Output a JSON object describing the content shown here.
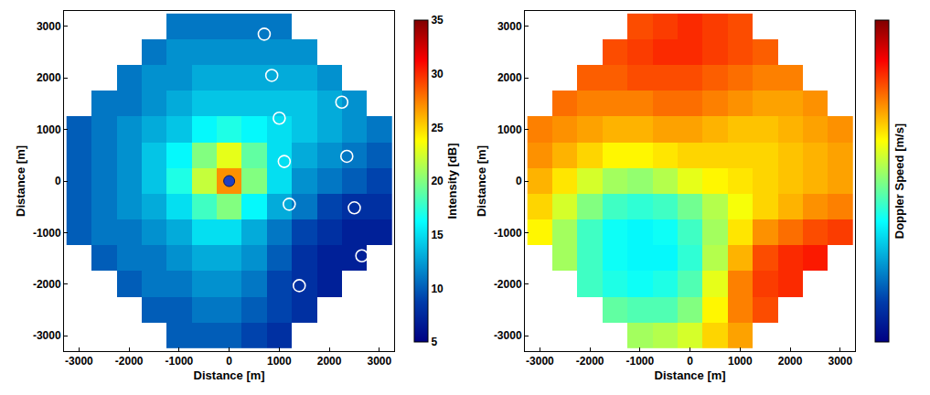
{
  "chart_data": [
    {
      "type": "heatmap",
      "xlabel": "Distance [m]",
      "ylabel": "Distance [m]",
      "xlim": [
        -3300,
        3300
      ],
      "ylim": [
        -3300,
        3300
      ],
      "xticks": [
        -3000,
        -2000,
        -1000,
        0,
        1000,
        2000,
        3000
      ],
      "yticks": [
        -3000,
        -2000,
        -1000,
        0,
        1000,
        2000,
        3000
      ],
      "colorbar_title": "Intensity [dB]",
      "zlim": [
        5,
        35
      ],
      "zticks": [
        5,
        10,
        15,
        20,
        25,
        30,
        35
      ],
      "x": [
        -3000,
        -2500,
        -2000,
        -1500,
        -1000,
        -500,
        0,
        500,
        1000,
        1500,
        2000,
        2500,
        3000
      ],
      "y": [
        -3000,
        -2500,
        -2000,
        -1500,
        -1000,
        -500,
        0,
        500,
        1000,
        1500,
        2000,
        2500,
        3000
      ],
      "z": [
        [
          null,
          null,
          null,
          null,
          10,
          10,
          10,
          9,
          8,
          null,
          null,
          null,
          null
        ],
        [
          null,
          null,
          null,
          10,
          10,
          11,
          11,
          10,
          9,
          8,
          null,
          null,
          null
        ],
        [
          null,
          null,
          10,
          11,
          11,
          12,
          12,
          11,
          9,
          8,
          7,
          null,
          null
        ],
        [
          null,
          10,
          11,
          11,
          12,
          13,
          13,
          12,
          10,
          8,
          7,
          7,
          null
        ],
        [
          10,
          11,
          11,
          12,
          13,
          15,
          15,
          13,
          11,
          9,
          8,
          7,
          7
        ],
        [
          10,
          11,
          12,
          13,
          15,
          18,
          20,
          16,
          13,
          11,
          9,
          8,
          8
        ],
        [
          10,
          11,
          12,
          14,
          17,
          22,
          27,
          20,
          15,
          12,
          11,
          10,
          9
        ],
        [
          10,
          11,
          12,
          14,
          16,
          20,
          23,
          19,
          15,
          13,
          12,
          11,
          10
        ],
        [
          10,
          11,
          12,
          13,
          14,
          16,
          17,
          16,
          15,
          14,
          13,
          12,
          11
        ],
        [
          null,
          11,
          11,
          12,
          13,
          14,
          14,
          14,
          14,
          14,
          13,
          12,
          null
        ],
        [
          null,
          null,
          11,
          12,
          12,
          13,
          13,
          13,
          13,
          13,
          12,
          null,
          null
        ],
        [
          null,
          null,
          null,
          11,
          12,
          12,
          12,
          12,
          12,
          12,
          null,
          null,
          null
        ],
        [
          null,
          null,
          null,
          null,
          11,
          11,
          11,
          11,
          11,
          null,
          null,
          null,
          null
        ]
      ],
      "points": {
        "x": [
          700,
          850,
          1000,
          2250,
          1100,
          2350,
          1200,
          2500,
          2650,
          1400
        ],
        "y": [
          2850,
          2050,
          1220,
          1530,
          380,
          480,
          -450,
          -520,
          -1450,
          -2030
        ],
        "marker": "circle-open",
        "color": "#ffffff"
      },
      "center": {
        "x": [
          0
        ],
        "y": [
          0
        ],
        "marker": "circle",
        "color": "#1f3fbf"
      }
    },
    {
      "type": "heatmap",
      "xlabel": "Distance [m]",
      "ylabel": "Distance [m]",
      "xlim": [
        -3300,
        3300
      ],
      "ylim": [
        -3300,
        3300
      ],
      "xticks": [
        -3000,
        -2000,
        -1000,
        0,
        1000,
        2000,
        3000
      ],
      "yticks": [
        -3000,
        -2000,
        -1000,
        0,
        1000,
        2000,
        3000
      ],
      "colorbar_title": "Doppler Speed [m/s]",
      "zlim": [
        -3,
        3
      ],
      "zticks": [],
      "x": [
        -3000,
        -2500,
        -2000,
        -1500,
        -1000,
        -500,
        0,
        500,
        1000,
        1500,
        2000,
        2500,
        3000
      ],
      "y": [
        -3000,
        -2500,
        -2000,
        -1500,
        -1000,
        -500,
        0,
        500,
        1000,
        1500,
        2000,
        2500,
        3000
      ],
      "z": [
        [
          null,
          null,
          null,
          null,
          0.2,
          0.3,
          0.5,
          1.0,
          1.3,
          null,
          null,
          null,
          null
        ],
        [
          null,
          null,
          null,
          -0.2,
          -0.3,
          -0.3,
          0.0,
          0.8,
          1.5,
          1.8,
          null,
          null,
          null
        ],
        [
          null,
          null,
          -0.4,
          -0.6,
          -0.7,
          -0.6,
          -0.3,
          0.6,
          1.5,
          1.9,
          2.0,
          null,
          null
        ],
        [
          null,
          0.2,
          -0.4,
          -0.7,
          -0.8,
          -0.8,
          -0.5,
          0.3,
          1.2,
          1.8,
          2.0,
          2.1,
          null
        ],
        [
          0.8,
          0.2,
          -0.4,
          -0.7,
          -0.8,
          -0.7,
          -0.4,
          0.2,
          0.9,
          1.4,
          1.6,
          1.8,
          1.9
        ],
        [
          1.0,
          0.5,
          0.0,
          -0.4,
          -0.5,
          -0.4,
          -0.1,
          0.3,
          0.7,
          1.0,
          1.2,
          1.4,
          1.5
        ],
        [
          1.2,
          0.9,
          0.5,
          0.2,
          0.1,
          0.3,
          0.6,
          0.8,
          0.9,
          1.0,
          1.1,
          1.2,
          1.3
        ],
        [
          1.4,
          1.2,
          1.0,
          0.8,
          0.8,
          0.9,
          1.0,
          1.0,
          1.0,
          1.0,
          1.1,
          1.2,
          1.3
        ],
        [
          1.5,
          1.4,
          1.3,
          1.2,
          1.2,
          1.3,
          1.3,
          1.2,
          1.1,
          1.1,
          1.2,
          1.3,
          1.4
        ],
        [
          null,
          1.6,
          1.5,
          1.5,
          1.5,
          1.6,
          1.6,
          1.5,
          1.4,
          1.3,
          1.3,
          1.4,
          null
        ],
        [
          null,
          null,
          1.7,
          1.7,
          1.8,
          1.8,
          1.8,
          1.7,
          1.6,
          1.5,
          1.5,
          null,
          null
        ],
        [
          null,
          null,
          null,
          1.8,
          1.9,
          2.0,
          2.0,
          1.9,
          1.8,
          1.7,
          null,
          null,
          null
        ],
        [
          null,
          null,
          null,
          null,
          1.8,
          1.9,
          2.0,
          1.9,
          1.8,
          null,
          null,
          null,
          null
        ]
      ]
    }
  ]
}
